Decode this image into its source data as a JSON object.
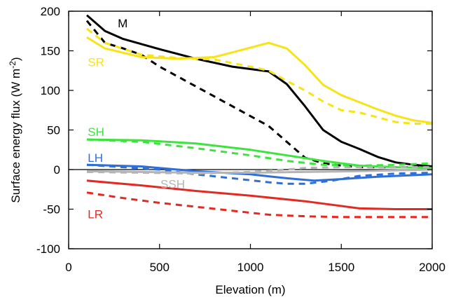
{
  "chart_data": {
    "type": "line",
    "xlabel": "Elevation (m)",
    "ylabel_main": "Surface energy flux (W m",
    "ylabel_sup": "-2",
    "ylabel_close": ")",
    "xlim": [
      0,
      2000
    ],
    "ylim": [
      -100,
      200
    ],
    "xticks": [
      0,
      500,
      1000,
      1500,
      2000
    ],
    "yticks": [
      -100,
      -50,
      0,
      50,
      100,
      150,
      200
    ],
    "grid": false,
    "zero_line": true,
    "series": [
      {
        "name": "M",
        "color": "#000000",
        "style": "solid",
        "x": [
          100,
          200,
          300,
          500,
          700,
          900,
          1100,
          1200,
          1300,
          1400,
          1500,
          1600,
          1700,
          1800,
          1900,
          2000
        ],
        "y": [
          195,
          175,
          165,
          152,
          140,
          130,
          124,
          108,
          80,
          50,
          35,
          26,
          16,
          9,
          6,
          4
        ]
      },
      {
        "name": "M",
        "color": "#000000",
        "style": "dashed",
        "x": [
          100,
          200,
          300,
          400,
          500,
          700,
          900,
          1100,
          1200,
          1300,
          1400,
          1500,
          1600,
          1700,
          1800,
          2000
        ],
        "y": [
          188,
          160,
          153,
          145,
          130,
          105,
          80,
          55,
          35,
          15,
          8,
          5,
          3,
          3,
          3,
          3
        ]
      },
      {
        "name": "SR",
        "color": "#f7e318",
        "style": "solid",
        "x": [
          100,
          200,
          400,
          600,
          800,
          900,
          1000,
          1100,
          1200,
          1300,
          1400,
          1500,
          1600,
          1700,
          1800,
          1900,
          2000
        ],
        "y": [
          167,
          153,
          142,
          140,
          142,
          148,
          154,
          160,
          153,
          132,
          107,
          94,
          85,
          76,
          68,
          62,
          59
        ]
      },
      {
        "name": "SR",
        "color": "#f7e318",
        "style": "dashed",
        "x": [
          100,
          200,
          400,
          600,
          800,
          1000,
          1100,
          1200,
          1300,
          1400,
          1500,
          1600,
          1700,
          1800,
          1900,
          2000
        ],
        "y": [
          178,
          160,
          145,
          141,
          139,
          130,
          125,
          112,
          100,
          86,
          75,
          72,
          66,
          60,
          58,
          58
        ]
      },
      {
        "name": "SH",
        "color": "#3ee33e",
        "style": "solid",
        "x": [
          100,
          400,
          700,
          1000,
          1200,
          1400,
          1600,
          1800,
          2000
        ],
        "y": [
          38,
          37,
          33,
          25,
          18,
          11,
          5,
          3,
          2
        ]
      },
      {
        "name": "SH",
        "color": "#3ee33e",
        "style": "dashed",
        "x": [
          100,
          400,
          700,
          1000,
          1200,
          1400,
          1600,
          1800,
          2000
        ],
        "y": [
          38,
          35,
          27,
          18,
          11,
          6,
          5,
          6,
          8
        ]
      },
      {
        "name": "LH",
        "color": "#2f6fd6",
        "style": "solid",
        "x": [
          100,
          400,
          700,
          1000,
          1200,
          1350,
          1500,
          1700,
          2000
        ],
        "y": [
          6,
          4,
          -2,
          -6,
          -11,
          -14,
          -12,
          -9,
          -6
        ]
      },
      {
        "name": "LH",
        "color": "#2f6fd6",
        "style": "dashed",
        "x": [
          100,
          300,
          500,
          700,
          900,
          1100,
          1200,
          1300,
          1450,
          1600,
          1800,
          2000
        ],
        "y": [
          6,
          3,
          0,
          -6,
          -11,
          -16,
          -18,
          -18,
          -14,
          -8,
          -5,
          -4
        ]
      },
      {
        "name": "SSH",
        "color": "#b4b4b4",
        "style": "solid",
        "x": [
          100,
          400,
          700,
          1000,
          1300,
          1600,
          2000
        ],
        "y": [
          -2,
          -3,
          -4,
          -4,
          -3,
          -2,
          0
        ]
      },
      {
        "name": "SSH",
        "color": "#b4b4b4",
        "style": "dashed",
        "x": [
          100,
          400,
          700,
          1000,
          1200,
          1300,
          1500,
          2000
        ],
        "y": [
          -3,
          -4,
          -5,
          -3,
          0,
          2,
          3,
          3
        ]
      },
      {
        "name": "LR",
        "color": "#e32a22",
        "style": "solid",
        "x": [
          100,
          400,
          700,
          1000,
          1300,
          1600,
          1800,
          2000
        ],
        "y": [
          -14,
          -20,
          -27,
          -33,
          -40,
          -49,
          -50,
          -50
        ]
      },
      {
        "name": "LR",
        "color": "#e32a22",
        "style": "dashed",
        "x": [
          100,
          300,
          500,
          700,
          900,
          1100,
          1300,
          1500,
          1600,
          1800,
          2000
        ],
        "y": [
          -29,
          -36,
          -42,
          -47,
          -52,
          -57,
          -59,
          -60,
          -60,
          -60,
          -60
        ]
      }
    ],
    "labels": [
      {
        "text": "M",
        "color": "#000000",
        "x": 270,
        "y": 185
      },
      {
        "text": "SR",
        "color": "#f7e318",
        "x": 105,
        "y": 136
      },
      {
        "text": "SH",
        "color": "#3ee33e",
        "x": 105,
        "y": 48
      },
      {
        "text": "LH",
        "color": "#2f6fd6",
        "x": 105,
        "y": 15
      },
      {
        "text": "SSH",
        "color": "#b4b4b4",
        "x": 505,
        "y": -18
      },
      {
        "text": "LR",
        "color": "#e32a22",
        "x": 105,
        "y": -56
      }
    ]
  }
}
